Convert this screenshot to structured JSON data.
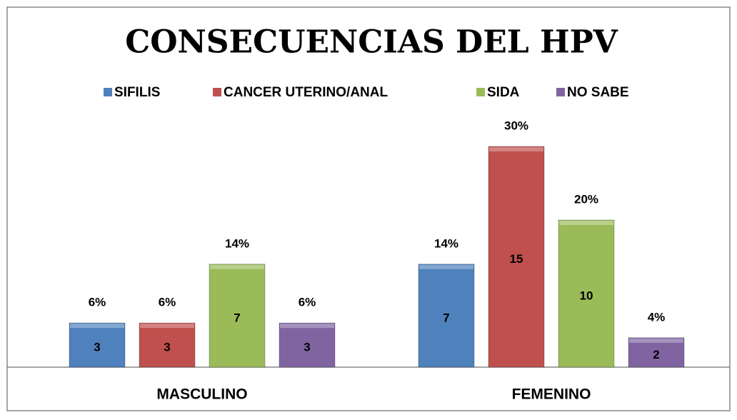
{
  "chart_data": {
    "type": "bar",
    "title": "CONSECUENCIAS DEL HPV",
    "categories": [
      "MASCULINO",
      "FEMENINO"
    ],
    "series": [
      {
        "name": "SIFILIS",
        "color": "#4f81bd",
        "values": [
          3,
          7
        ],
        "percent_labels": [
          "6%",
          "14%"
        ]
      },
      {
        "name": "CANCER UTERINO/ANAL",
        "color": "#c0504d",
        "values": [
          3,
          15
        ],
        "percent_labels": [
          "6%",
          "30%"
        ]
      },
      {
        "name": "SIDA",
        "color": "#9bbb59",
        "values": [
          7,
          10
        ],
        "percent_labels": [
          "14%",
          "20%"
        ]
      },
      {
        "name": "NO SABE",
        "color": "#8064a2",
        "values": [
          3,
          2
        ],
        "percent_labels": [
          "6%",
          "4%"
        ]
      }
    ],
    "legend": "top"
  }
}
